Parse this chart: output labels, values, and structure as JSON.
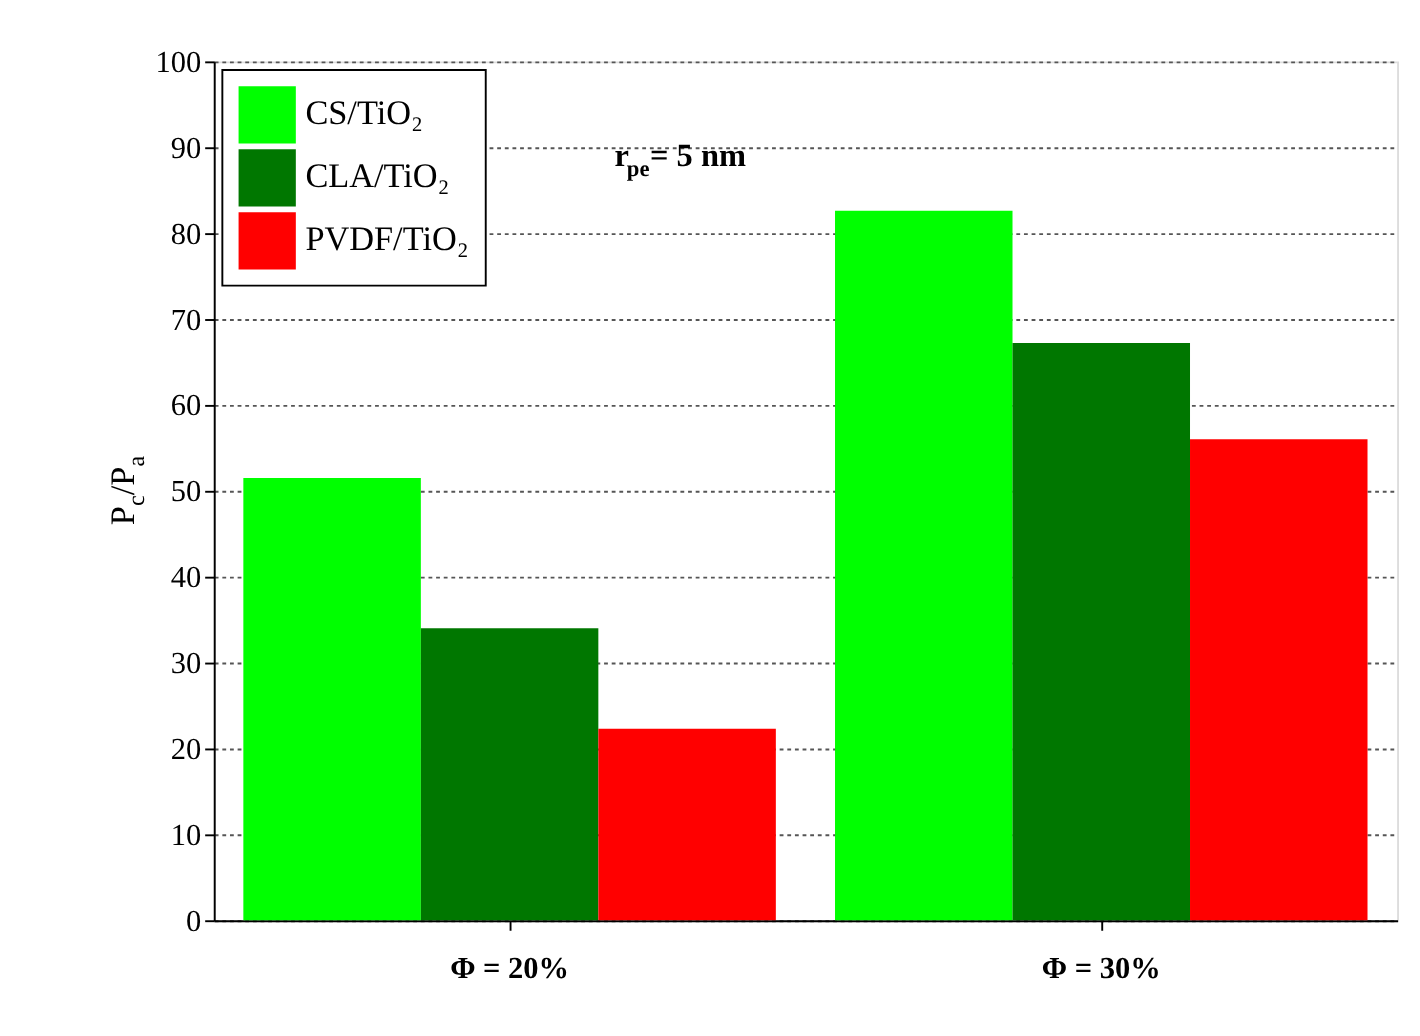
{
  "chart_data": {
    "type": "bar",
    "ylabel": "P$_{c}$/P$_{a}$",
    "categories": [
      "Φ  = 20%",
      "Φ  = 30%"
    ],
    "series": [
      {
        "name": "CS/TiO₂",
        "color": "#00ff00",
        "values": [
          51.5,
          82.6
        ]
      },
      {
        "name": "CLA/TiO₂",
        "color": "#007700",
        "values": [
          34,
          67.2
        ]
      },
      {
        "name": "PVDF/TiO₂",
        "color": "#ff0000",
        "values": [
          22.3,
          56
        ]
      }
    ],
    "ylim": [
      0,
      100
    ],
    "yticks": [
      0,
      10,
      20,
      30,
      40,
      50,
      60,
      70,
      80,
      90,
      100
    ],
    "grid": "y",
    "legend": "top left",
    "annotations": [
      "r$_{pe}$= 5 nm"
    ]
  }
}
